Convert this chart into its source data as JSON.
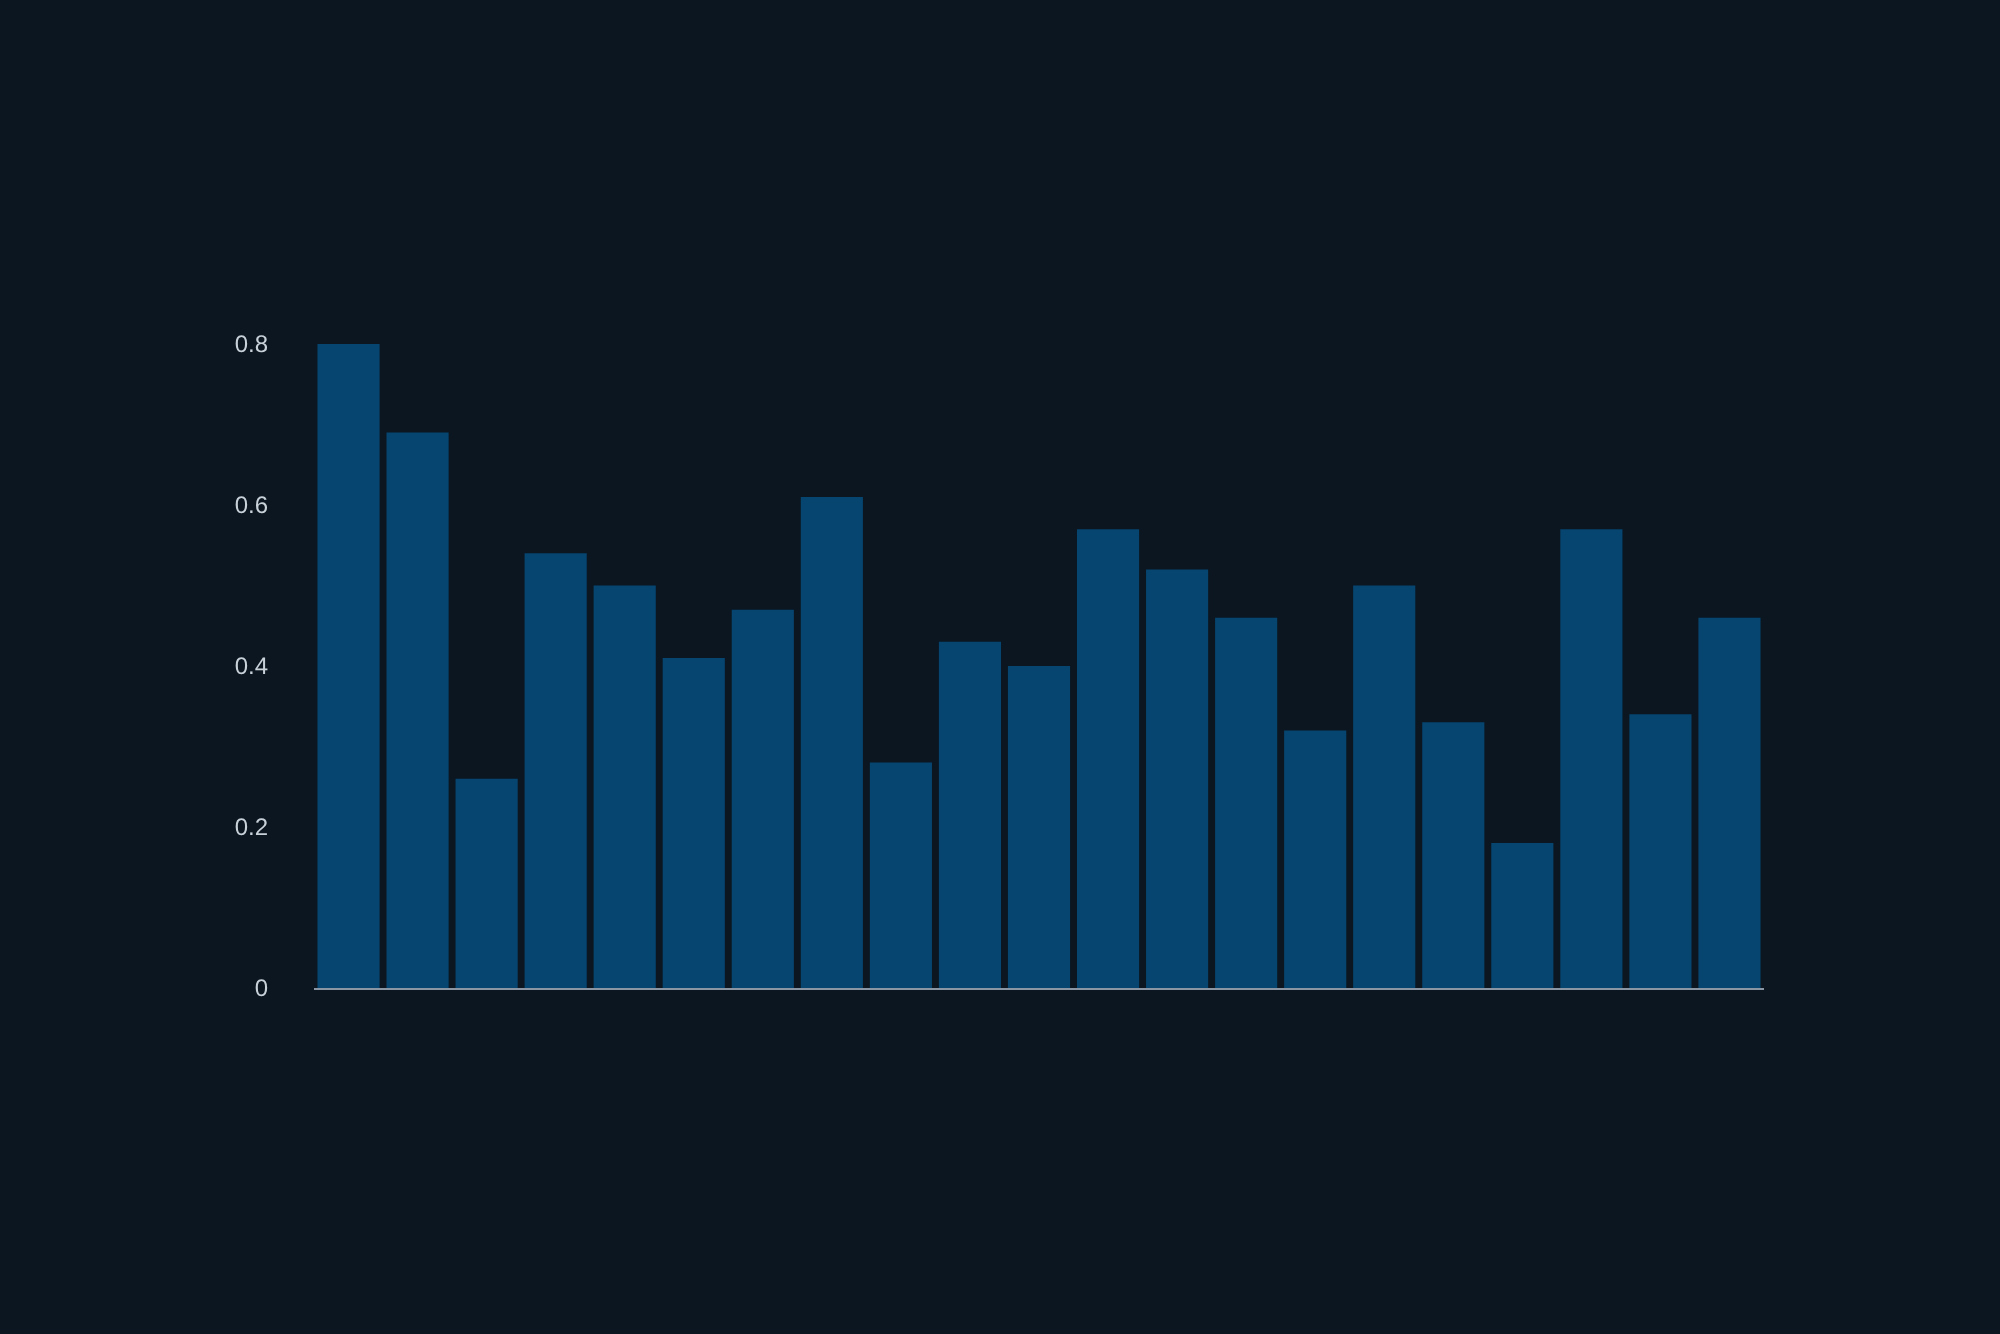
{
  "chart_data": {
    "type": "bar",
    "categories": [
      null,
      null,
      null,
      null,
      null,
      null,
      null,
      null,
      null,
      null,
      null,
      null,
      null,
      null,
      null,
      null,
      null,
      null,
      null,
      null,
      null
    ],
    "values": [
      0.8,
      0.69,
      0.26,
      0.54,
      0.5,
      0.41,
      0.47,
      0.61,
      0.28,
      0.43,
      0.4,
      0.57,
      0.52,
      0.46,
      0.32,
      0.5,
      0.33,
      0.18,
      0.57,
      0.34,
      0.46
    ],
    "color": "#064570",
    "ylim": [
      0,
      0.8
    ],
    "yticks": [
      0,
      0.2,
      0.4,
      0.6,
      0.8
    ],
    "tick_labels": "y",
    "grid": false
  }
}
